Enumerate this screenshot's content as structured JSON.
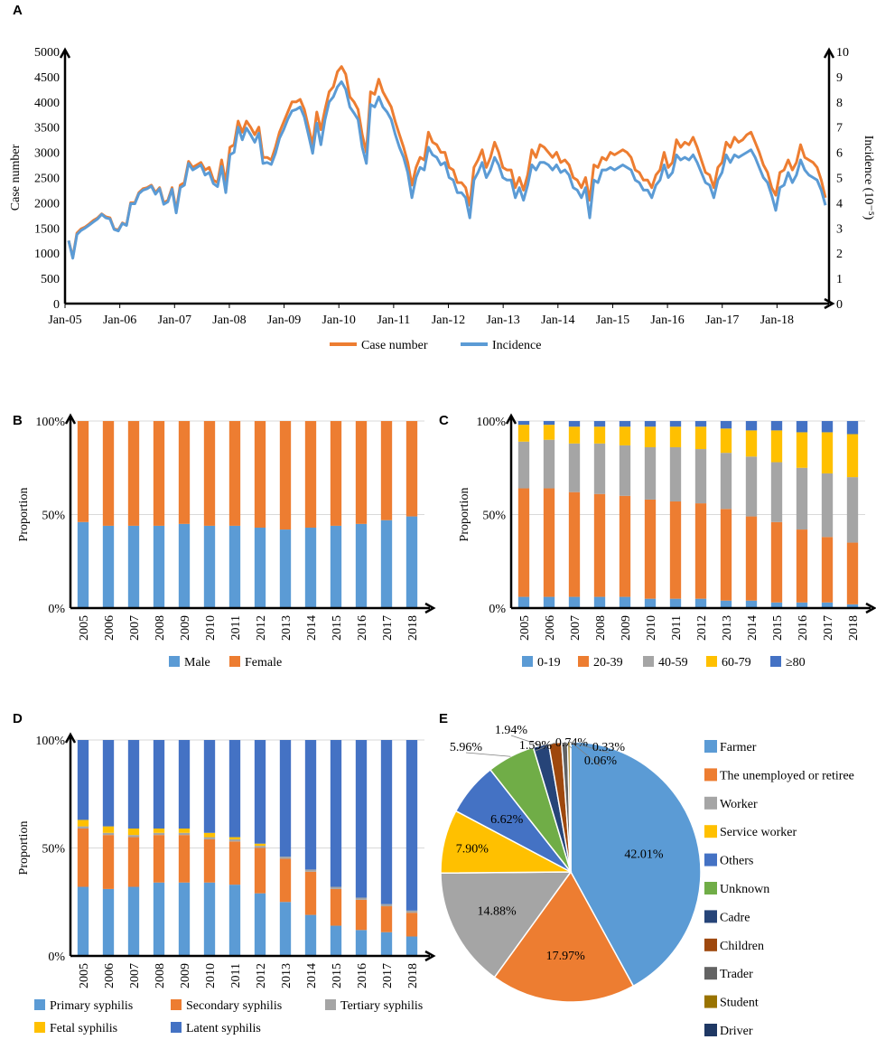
{
  "colors": {
    "blue": "#5B9BD5",
    "orange": "#ED7D31",
    "gray": "#A5A5A5",
    "yellow": "#FFC000",
    "darkblue": "#4472C4",
    "green": "#70AD47",
    "navy": "#264478",
    "brown": "#9E480E",
    "darkgray": "#636363",
    "olive": "#997300",
    "deepnavy": "#1F3864",
    "grid": "#D9D9D9"
  },
  "chart_data": [
    {
      "panel": "A",
      "type": "line",
      "xlabel": "",
      "ylabel": "Case number",
      "y2label": "Incidence (10⁻⁵)",
      "ylim": [
        0,
        5000
      ],
      "y2lim": [
        0,
        10
      ],
      "yticks": [
        "0",
        "500",
        "1000",
        "1500",
        "2000",
        "2500",
        "3000",
        "3500",
        "4000",
        "4500",
        "5000"
      ],
      "y2ticks": [
        "0",
        "1",
        "2",
        "3",
        "4",
        "5",
        "6",
        "7",
        "8",
        "9",
        "10"
      ],
      "xticklabels": [
        "Jan-05",
        "Jan-06",
        "Jan-07",
        "Jan-08",
        "Jan-09",
        "Jan-10",
        "Jan-11",
        "Jan-12",
        "Jan-13",
        "Jan-14",
        "Jan-15",
        "Jan-16",
        "Jan-17",
        "Jan-18"
      ],
      "series": [
        {
          "name": "Case number",
          "color": "orange",
          "axis": "left",
          "values": [
            1250,
            920,
            1400,
            1480,
            1520,
            1580,
            1650,
            1700,
            1780,
            1720,
            1700,
            1480,
            1460,
            1600,
            1560,
            2000,
            2000,
            2200,
            2280,
            2300,
            2350,
            2200,
            2300,
            2000,
            2050,
            2300,
            1850,
            2350,
            2400,
            2820,
            2700,
            2750,
            2800,
            2650,
            2700,
            2450,
            2400,
            2850,
            2400,
            3100,
            3150,
            3620,
            3400,
            3620,
            3500,
            3350,
            3500,
            2900,
            2900,
            2850,
            3100,
            3400,
            3600,
            3800,
            4000,
            4000,
            4050,
            3850,
            3500,
            3150,
            3800,
            3450,
            3850,
            4200,
            4300,
            4600,
            4700,
            4550,
            4100,
            4000,
            3850,
            3350,
            3000,
            4200,
            4150,
            4450,
            4200,
            4050,
            3900,
            3600,
            3350,
            3100,
            2800,
            2350,
            2700,
            2900,
            2850,
            3400,
            3200,
            3150,
            3000,
            3000,
            2700,
            2650,
            2400,
            2400,
            2300,
            1950,
            2700,
            2850,
            3050,
            2700,
            2900,
            3200,
            3000,
            2700,
            2650,
            2650,
            2300,
            2500,
            2250,
            2550,
            3050,
            2900,
            3150,
            3100,
            3000,
            2900,
            3000,
            2800,
            2850,
            2750,
            2500,
            2450,
            2300,
            2500,
            2050,
            2750,
            2700,
            2900,
            2850,
            3000,
            2950,
            3000,
            3050,
            3000,
            2900,
            2650,
            2600,
            2450,
            2450,
            2300,
            2550,
            2650,
            3000,
            2700,
            2800,
            3250,
            3100,
            3200,
            3150,
            3300,
            3100,
            2850,
            2600,
            2550,
            2300,
            2700,
            2800,
            3200,
            3100,
            3300,
            3200,
            3250,
            3350,
            3400,
            3200,
            3000,
            2750,
            2600,
            2300,
            2150,
            2600,
            2650,
            2850,
            2650,
            2800,
            3150,
            2900,
            2850,
            2800,
            2700,
            2450,
            2100
          ]
        },
        {
          "name": "Incidence",
          "color": "blue",
          "axis": "left",
          "values": [
            1250,
            900,
            1370,
            1450,
            1500,
            1560,
            1620,
            1680,
            1770,
            1700,
            1680,
            1470,
            1440,
            1590,
            1550,
            1980,
            1980,
            2180,
            2250,
            2280,
            2330,
            2170,
            2280,
            1970,
            2020,
            2270,
            1800,
            2300,
            2350,
            2780,
            2650,
            2700,
            2750,
            2550,
            2600,
            2380,
            2320,
            2720,
            2200,
            2950,
            3000,
            3500,
            3250,
            3480,
            3350,
            3200,
            3380,
            2780,
            2800,
            2760,
            2980,
            3280,
            3450,
            3660,
            3820,
            3850,
            3900,
            3700,
            3350,
            2980,
            3580,
            3150,
            3650,
            4000,
            4100,
            4300,
            4400,
            4250,
            3900,
            3780,
            3650,
            3100,
            2780,
            3950,
            3900,
            4100,
            3900,
            3800,
            3650,
            3350,
            3100,
            2900,
            2600,
            2100,
            2500,
            2700,
            2650,
            3100,
            2950,
            2900,
            2750,
            2800,
            2500,
            2450,
            2200,
            2200,
            2100,
            1700,
            2450,
            2600,
            2800,
            2500,
            2650,
            2900,
            2750,
            2500,
            2450,
            2450,
            2100,
            2300,
            2050,
            2350,
            2750,
            2650,
            2800,
            2800,
            2750,
            2650,
            2750,
            2600,
            2650,
            2550,
            2300,
            2250,
            2100,
            2300,
            1700,
            2450,
            2400,
            2650,
            2650,
            2700,
            2650,
            2700,
            2750,
            2700,
            2650,
            2450,
            2400,
            2250,
            2250,
            2100,
            2350,
            2450,
            2750,
            2500,
            2600,
            2950,
            2850,
            2900,
            2850,
            2950,
            2800,
            2600,
            2400,
            2350,
            2100,
            2450,
            2600,
            2950,
            2800,
            2950,
            2900,
            2950,
            3000,
            3050,
            2900,
            2700,
            2500,
            2400,
            2150,
            1850,
            2300,
            2350,
            2600,
            2400,
            2550,
            2850,
            2650,
            2550,
            2500,
            2450,
            2250,
            1950
          ]
        }
      ],
      "legend": [
        "Case number",
        "Incidence"
      ]
    },
    {
      "panel": "B",
      "type": "bar",
      "stacked": true,
      "ylabel": "Proportion",
      "yticks": [
        "0%",
        "50%",
        "100%"
      ],
      "categories": [
        "2005",
        "2006",
        "2007",
        "2008",
        "2009",
        "2010",
        "2011",
        "2012",
        "2013",
        "2014",
        "2015",
        "2016",
        "2017",
        "2018"
      ],
      "series": [
        {
          "name": "Male",
          "color": "blue",
          "values": [
            46,
            44,
            44,
            44,
            45,
            44,
            44,
            43,
            42,
            43,
            44,
            45,
            47,
            49
          ]
        },
        {
          "name": "Female",
          "color": "orange",
          "values": [
            54,
            56,
            56,
            56,
            55,
            56,
            56,
            57,
            58,
            57,
            56,
            55,
            53,
            51
          ]
        }
      ]
    },
    {
      "panel": "C",
      "type": "bar",
      "stacked": true,
      "ylabel": "Proportion",
      "yticks": [
        "0%",
        "50%",
        "100%"
      ],
      "categories": [
        "2005",
        "2006",
        "2007",
        "2008",
        "2009",
        "2010",
        "2011",
        "2012",
        "2013",
        "2014",
        "2015",
        "2016",
        "2017",
        "2018"
      ],
      "series": [
        {
          "name": "0-19",
          "color": "blue",
          "values": [
            6,
            6,
            6,
            6,
            6,
            5,
            5,
            5,
            4,
            4,
            3,
            3,
            3,
            2
          ]
        },
        {
          "name": "20-39",
          "color": "orange",
          "values": [
            58,
            58,
            56,
            55,
            54,
            53,
            52,
            51,
            49,
            45,
            43,
            39,
            35,
            33
          ]
        },
        {
          "name": "40-59",
          "color": "gray",
          "values": [
            25,
            26,
            26,
            27,
            27,
            28,
            29,
            29,
            30,
            32,
            32,
            33,
            34,
            35
          ]
        },
        {
          "name": "60-79",
          "color": "yellow",
          "values": [
            9,
            8,
            9,
            9,
            10,
            11,
            11,
            12,
            13,
            14,
            17,
            19,
            22,
            23
          ]
        },
        {
          "name": "≥80",
          "color": "darkblue",
          "values": [
            2,
            2,
            3,
            3,
            3,
            3,
            3,
            3,
            4,
            5,
            5,
            6,
            6,
            7
          ]
        }
      ]
    },
    {
      "panel": "D",
      "type": "bar",
      "stacked": true,
      "ylabel": "Proportion",
      "yticks": [
        "0%",
        "50%",
        "100%"
      ],
      "categories": [
        "2005",
        "2006",
        "2007",
        "2008",
        "2009",
        "2010",
        "2011",
        "2012",
        "2013",
        "2014",
        "2015",
        "2016",
        "2017",
        "2018"
      ],
      "series": [
        {
          "name": "Primary syphilis",
          "color": "blue",
          "values": [
            32,
            31,
            32,
            34,
            34,
            34,
            33,
            29,
            25,
            19,
            14,
            12,
            11,
            9
          ]
        },
        {
          "name": "Secondary syphilis",
          "color": "orange",
          "values": [
            27,
            25,
            23,
            22,
            22,
            20,
            20,
            21,
            20,
            20,
            17,
            14,
            12,
            11
          ]
        },
        {
          "name": "Tertiary syphilis",
          "color": "gray",
          "values": [
            1,
            1,
            1,
            1,
            1,
            1,
            1,
            1,
            1,
            1,
            1,
            1,
            1,
            1
          ]
        },
        {
          "name": "Fetal syphilis",
          "color": "yellow",
          "values": [
            3,
            3,
            3,
            2,
            2,
            2,
            1,
            1,
            0,
            0,
            0,
            0,
            0,
            0
          ]
        },
        {
          "name": "Latent syphilis",
          "color": "darkblue",
          "values": [
            37,
            40,
            41,
            41,
            41,
            43,
            45,
            48,
            54,
            60,
            68,
            73,
            76,
            79
          ]
        }
      ]
    },
    {
      "panel": "E",
      "type": "pie",
      "slices": [
        {
          "name": "Farmer",
          "value": 42.01,
          "label": "42.01%",
          "color": "blue"
        },
        {
          "name": "The unemployed or retiree",
          "value": 17.97,
          "label": "17.97%",
          "color": "orange"
        },
        {
          "name": "Worker",
          "value": 14.88,
          "label": "14.88%",
          "color": "gray"
        },
        {
          "name": "Service worker",
          "value": 7.9,
          "label": "7.90%",
          "color": "yellow"
        },
        {
          "name": "Others",
          "value": 6.62,
          "label": "6.62%",
          "color": "darkblue"
        },
        {
          "name": "Unknown",
          "value": 5.96,
          "label": "5.96%",
          "color": "green"
        },
        {
          "name": "Cadre",
          "value": 1.94,
          "label": "1.94%",
          "color": "navy"
        },
        {
          "name": "Children",
          "value": 1.59,
          "label": "1.59%",
          "color": "brown"
        },
        {
          "name": "Trader",
          "value": 0.74,
          "label": "0.74%",
          "color": "darkgray"
        },
        {
          "name": "Student",
          "value": 0.33,
          "label": "0.33%",
          "color": "olive"
        },
        {
          "name": "Driver",
          "value": 0.06,
          "label": "0.06%",
          "color": "deepnavy"
        }
      ]
    }
  ]
}
